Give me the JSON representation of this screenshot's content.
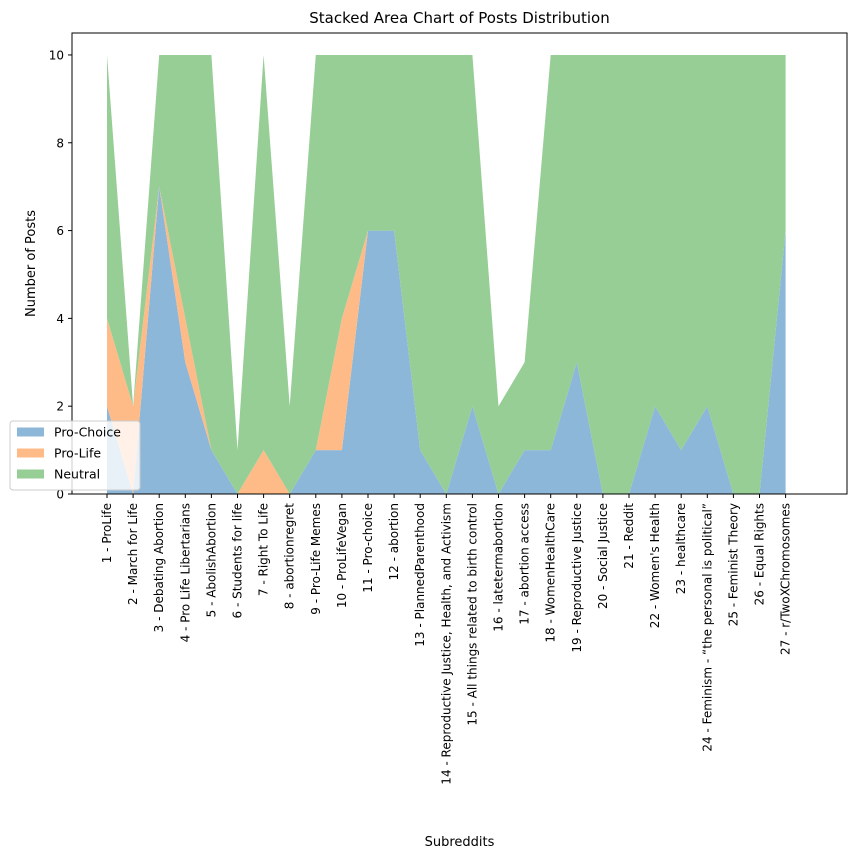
{
  "chart_data": {
    "type": "area",
    "stacked": true,
    "title": "Stacked Area Chart of Posts Distribution",
    "xlabel": "Subreddits",
    "ylabel": "Number of Posts",
    "ylim": [
      0,
      10.5
    ],
    "yticks": [
      0,
      2,
      4,
      6,
      8,
      10
    ],
    "grid": false,
    "legend_position": "lower-left",
    "categories": [
      "1 - ProLife",
      "2 - March for Life",
      "3 - Debating Abortion",
      "4 - Pro Life Libertarians",
      "5 - AbolishAbortion",
      "6 - Students for life",
      "7 - Right To Life",
      "8 - abortionregret",
      "9 - Pro-Life Memes",
      "10 - ProLifeVegan",
      "11 - Pro-choice",
      "12 - abortion",
      "13 - PlannedParenthood",
      "14 - Reproductive Justice, Health, and Activism",
      "15 - All things related to birth control",
      "16 - latetermabortion",
      "17 - abortion access",
      "18 - WomenHealthCare",
      "19 - Reproductive Justice",
      "20 - Social Justice",
      "21 - Reddit",
      "22 - Women's Health",
      "23 - healthcare",
      "24 - Feminism - “the personal is political”",
      "25 - Feminist Theory",
      "26 - Equal Rights",
      "27 - r/TwoXChromosomes"
    ],
    "series": [
      {
        "name": "Pro-Choice",
        "color": "#8cb7d8",
        "values": [
          2,
          0,
          7,
          3,
          1,
          0,
          0,
          0,
          1,
          1,
          6,
          6,
          1,
          0,
          2,
          0,
          1,
          1,
          3,
          0,
          0,
          2,
          1,
          2,
          0,
          0,
          6
        ]
      },
      {
        "name": "Pro-Life",
        "color": "#ffbb87",
        "values": [
          2,
          2,
          0,
          1,
          0,
          0,
          1,
          0,
          0,
          3,
          0,
          0,
          0,
          0,
          0,
          0,
          0,
          0,
          0,
          0,
          0,
          0,
          0,
          0,
          0,
          0,
          0
        ]
      },
      {
        "name": "Neutral",
        "color": "#96ce96",
        "values": [
          6,
          0,
          3,
          6,
          9,
          1,
          9,
          2,
          9,
          6,
          4,
          4,
          9,
          10,
          8,
          2,
          2,
          9,
          7,
          10,
          10,
          8,
          9,
          8,
          10,
          10,
          4
        ]
      }
    ]
  }
}
